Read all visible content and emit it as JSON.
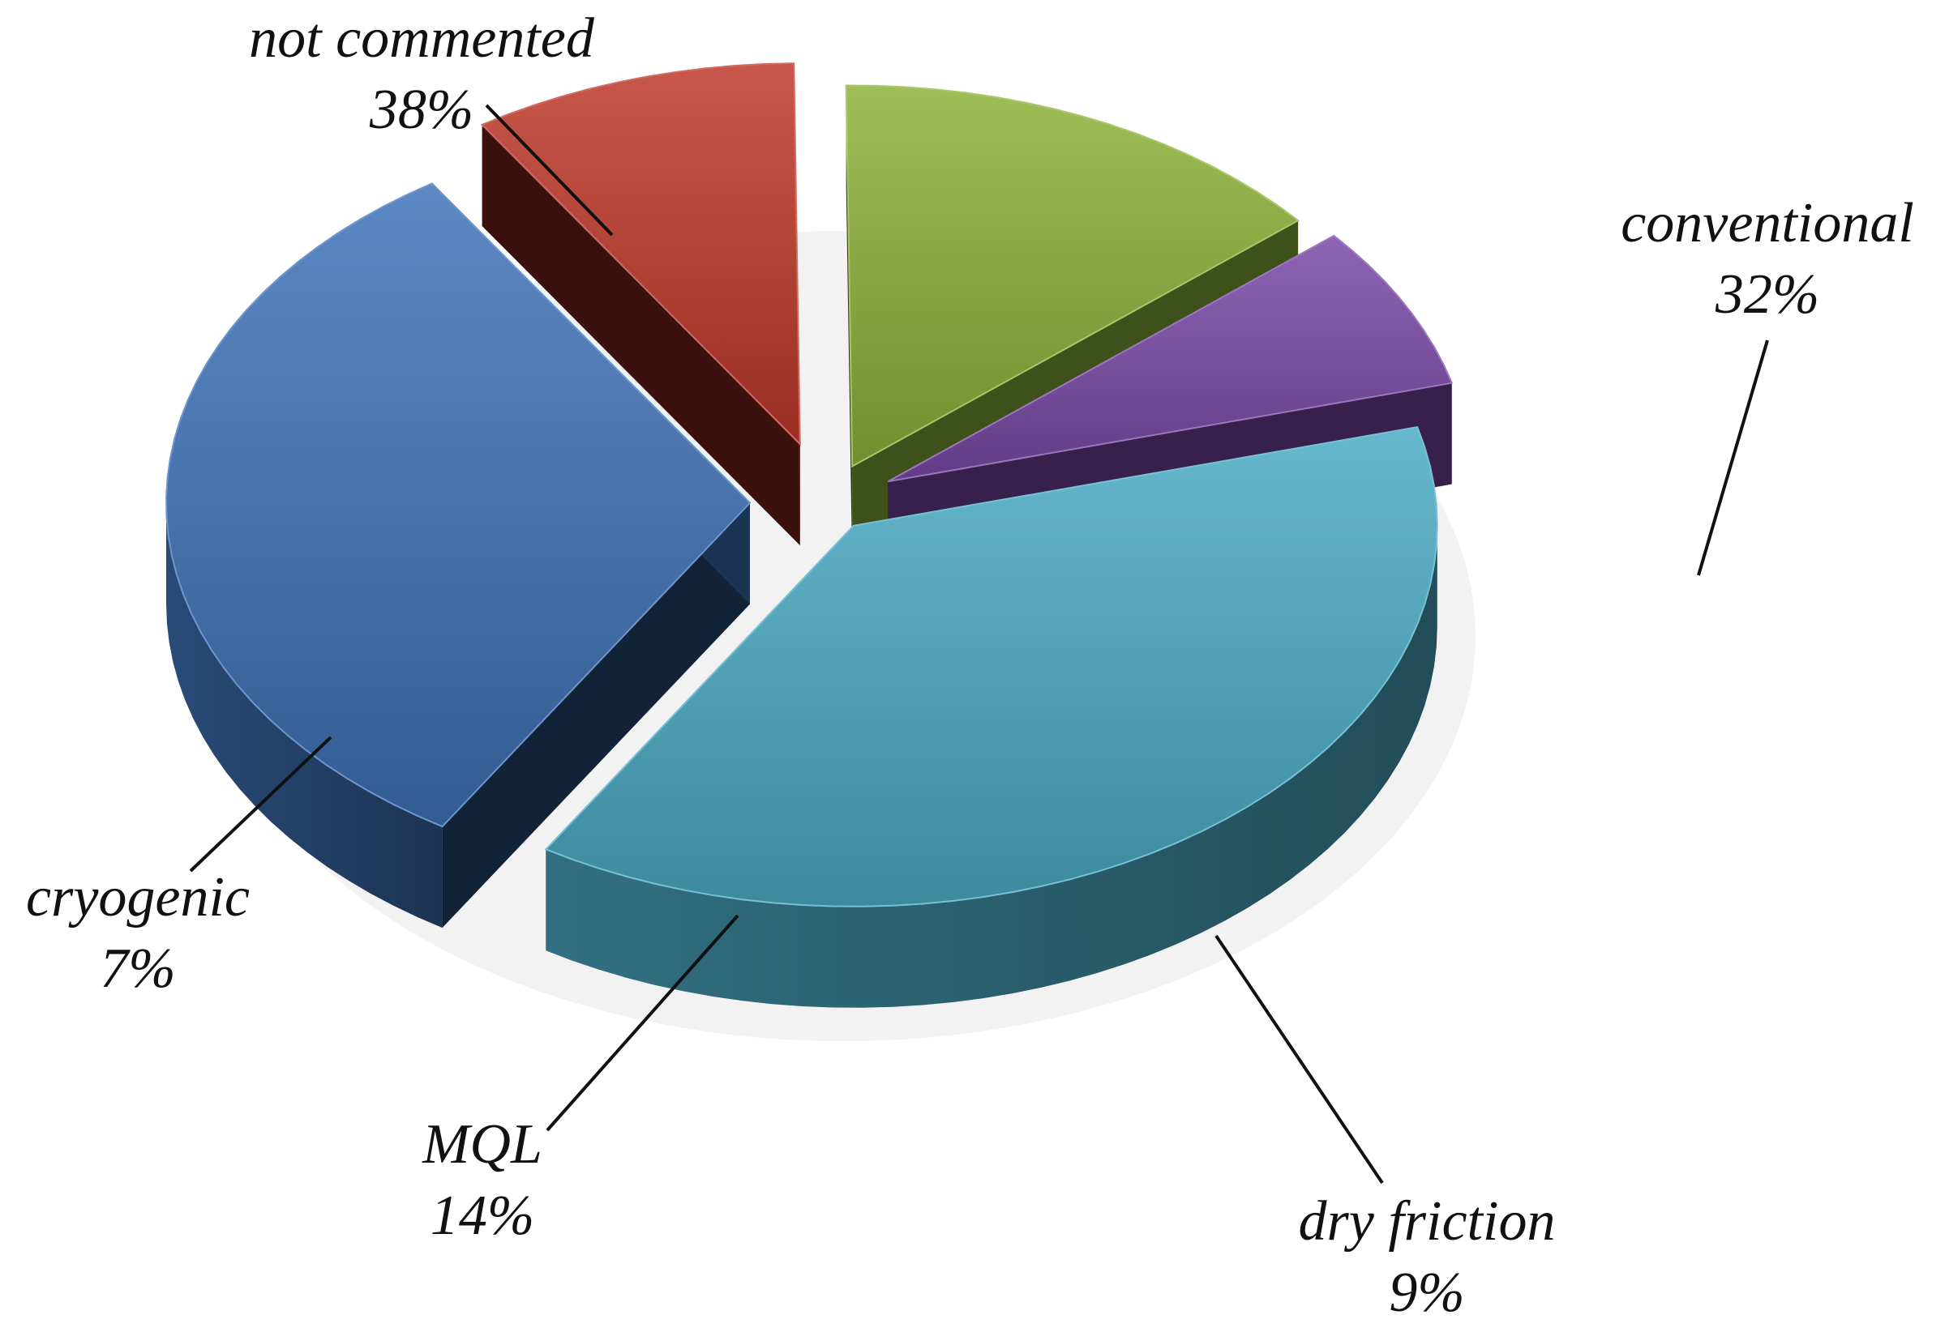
{
  "chart_data": {
    "type": "pie",
    "style": "3d-exploded",
    "slices": [
      {
        "label": "not commented",
        "value": 38,
        "value_label": "38%",
        "color": "#4bacc6"
      },
      {
        "label": "conventional",
        "value": 32,
        "value_label": "32%",
        "color": "#3f73b8"
      },
      {
        "label": "dry friction",
        "value": 9,
        "value_label": "9%",
        "color": "#c0392b"
      },
      {
        "label": "MQL",
        "value": 14,
        "value_label": "14%",
        "color": "#8db33a"
      },
      {
        "label": "cryogenic",
        "value": 7,
        "value_label": "7%",
        "color": "#7a4aa8"
      }
    ],
    "legend": "none",
    "title": ""
  }
}
